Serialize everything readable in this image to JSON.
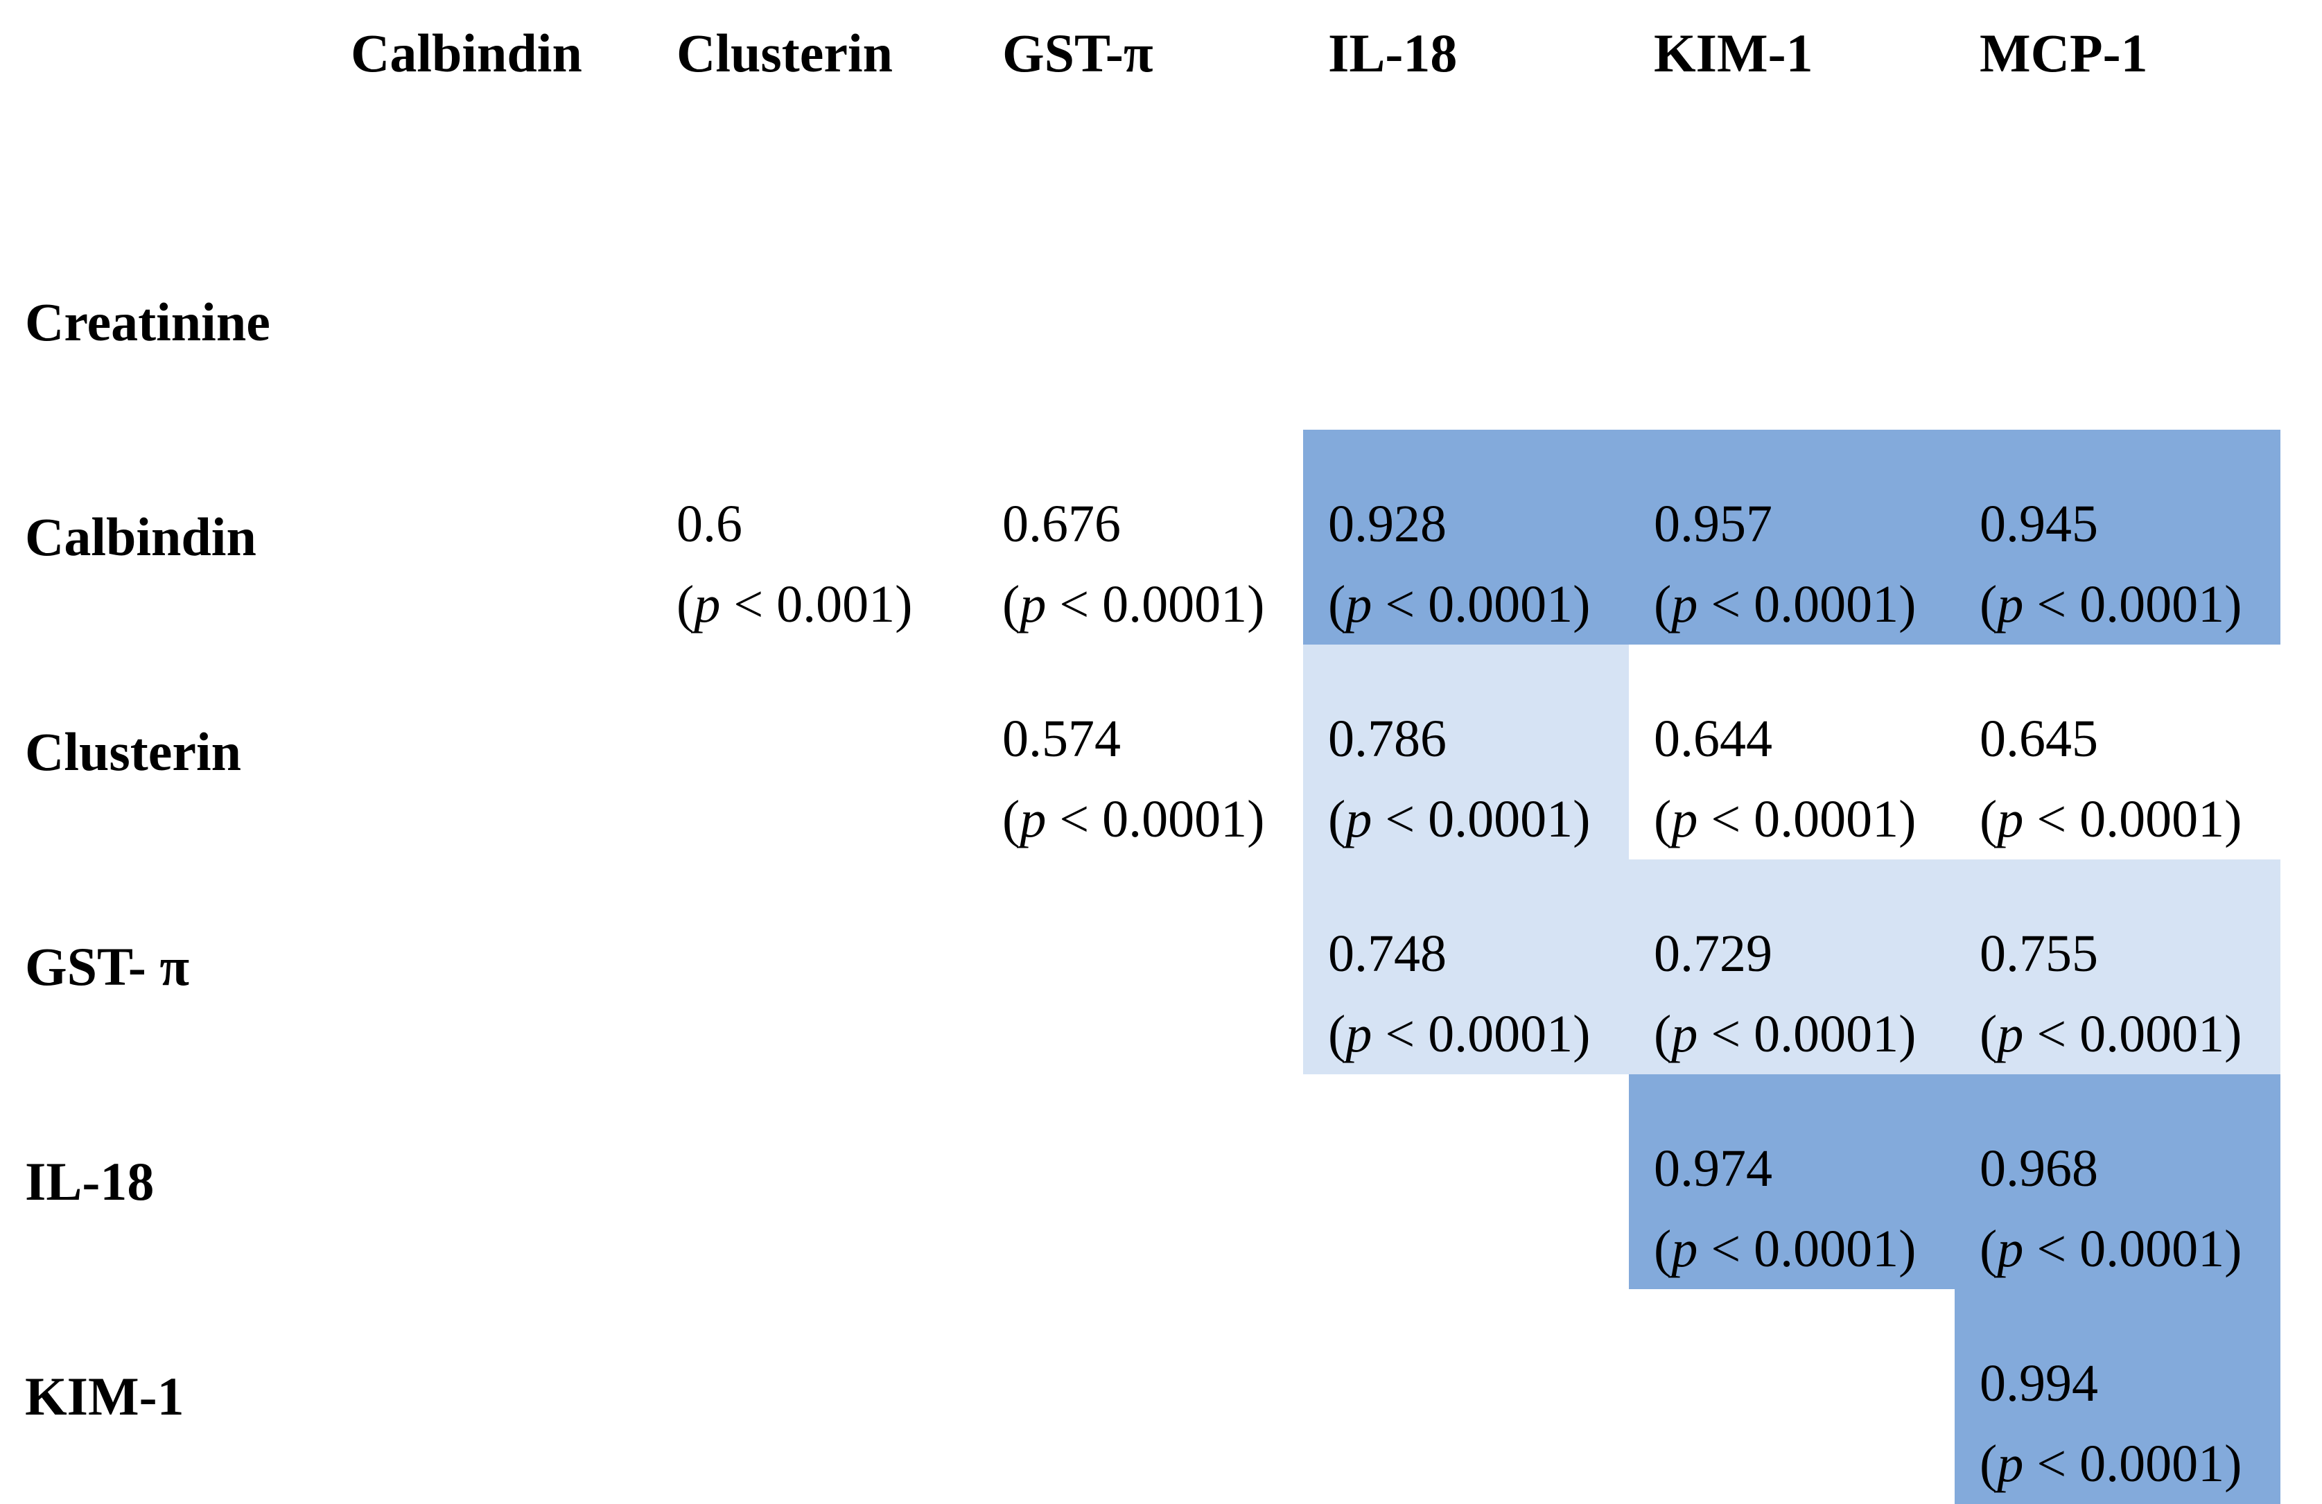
{
  "columns": [
    "Calbindin",
    "Clusterin",
    "GST-π",
    "IL-18",
    "KIM-1",
    "MCP-1"
  ],
  "rows": [
    {
      "label": "Creatinine",
      "cells": [
        null,
        null,
        null,
        null,
        null,
        null
      ]
    },
    {
      "label": "Calbindin",
      "cells": [
        null,
        {
          "r": "0.6",
          "p": "< 0.001)",
          "shade": "none"
        },
        {
          "r": "0.676",
          "p": "< 0.0001)",
          "shade": "none"
        },
        {
          "r": "0.928",
          "p": "< 0.0001)",
          "shade": "strong"
        },
        {
          "r": "0.957",
          "p": "< 0.0001)",
          "shade": "strong"
        },
        {
          "r": "0.945",
          "p": "< 0.0001)",
          "shade": "strong"
        }
      ]
    },
    {
      "label": "Clusterin",
      "cells": [
        null,
        null,
        {
          "r": "0.574",
          "p": "< 0.0001)",
          "shade": "none"
        },
        {
          "r": "0.786",
          "p": "< 0.0001)",
          "shade": "light"
        },
        {
          "r": "0.644",
          "p": "< 0.0001)",
          "shade": "none"
        },
        {
          "r": "0.645",
          "p": "< 0.0001)",
          "shade": "none"
        }
      ]
    },
    {
      "label": "GST- π",
      "cells": [
        null,
        null,
        null,
        {
          "r": "0.748",
          "p": "< 0.0001)",
          "shade": "light"
        },
        {
          "r": "0.729",
          "p": "< 0.0001)",
          "shade": "light"
        },
        {
          "r": "0.755",
          "p": "< 0.0001)",
          "shade": "light"
        }
      ]
    },
    {
      "label": "IL-18",
      "cells": [
        null,
        null,
        null,
        null,
        {
          "r": "0.974",
          "p": "< 0.0001)",
          "shade": "strong"
        },
        {
          "r": "0.968",
          "p": "< 0.0001)",
          "shade": "strong"
        }
      ]
    },
    {
      "label": "KIM-1",
      "cells": [
        null,
        null,
        null,
        null,
        null,
        {
          "r": "0.994",
          "p": "< 0.0001)",
          "shade": "strong"
        }
      ]
    }
  ],
  "p_symbol": "p",
  "p_open": "(",
  "colors": {
    "strong": "#83aadb",
    "light": "#d6e3f4"
  }
}
